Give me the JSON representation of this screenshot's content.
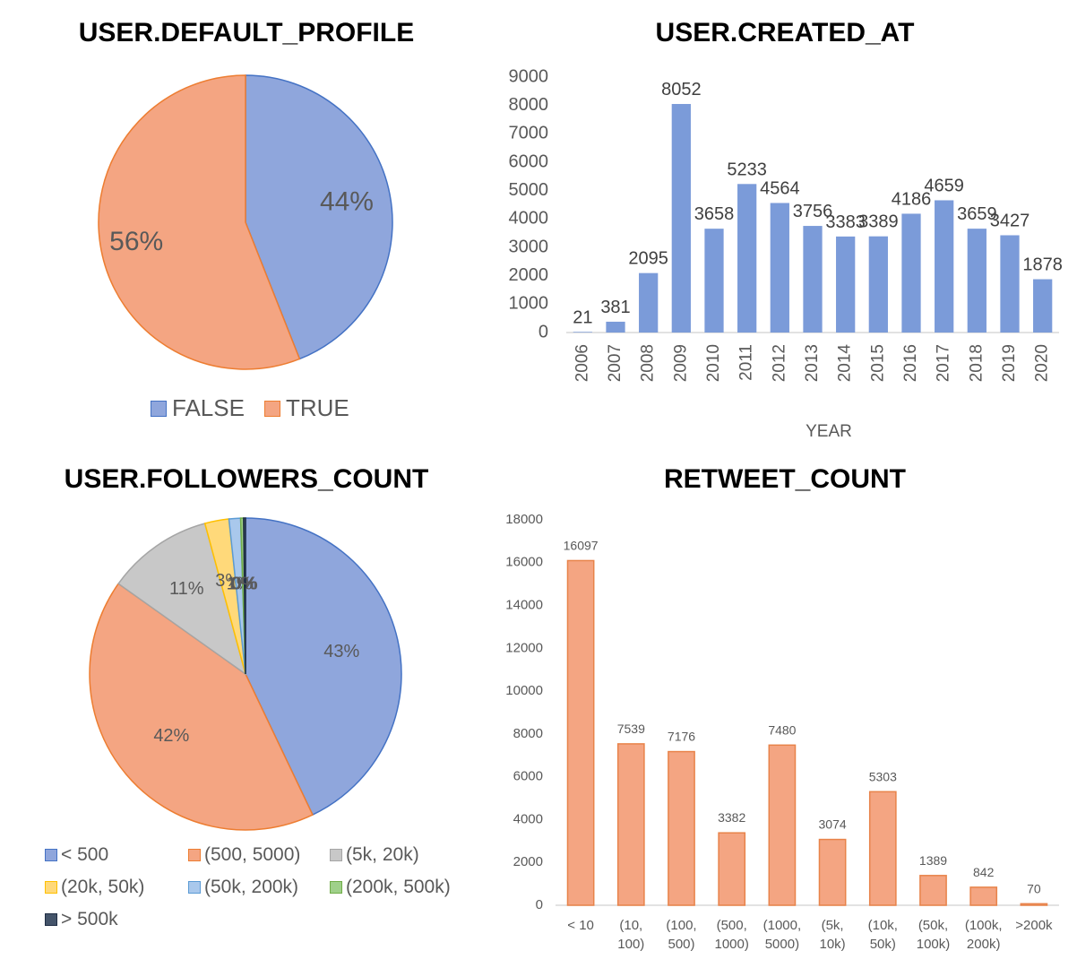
{
  "chart_data": [
    {
      "id": "default_profile",
      "type": "pie",
      "title": "USER.DEFAULT_PROFILE",
      "labels": [
        "FALSE",
        "TRUE"
      ],
      "values": [
        44,
        56
      ],
      "data_labels": [
        "44%",
        "56%"
      ],
      "colors": [
        "#8fa6dc",
        "#f4a582"
      ],
      "legend": "bottom"
    },
    {
      "id": "created_at",
      "type": "bar",
      "title": "USER.CREATED_AT",
      "xlabel": "YEAR",
      "ylabel": "",
      "categories": [
        "2006",
        "2007",
        "2008",
        "2009",
        "2010",
        "2011",
        "2012",
        "2013",
        "2014",
        "2015",
        "2016",
        "2017",
        "2018",
        "2019",
        "2020"
      ],
      "values": [
        21,
        381,
        2095,
        8052,
        3658,
        5233,
        4564,
        3756,
        3383,
        3389,
        4186,
        4659,
        3659,
        3427,
        1878
      ],
      "ylim": [
        0,
        9000
      ],
      "yticks": [
        0,
        1000,
        2000,
        3000,
        4000,
        5000,
        6000,
        7000,
        8000,
        9000
      ],
      "color": "#7b9bd9",
      "grid": false
    },
    {
      "id": "followers_count",
      "type": "pie",
      "title": "USER.FOLLOWERS_COUNT",
      "labels": [
        "< 500",
        "(500, 5000)",
        "(5k, 20k)",
        "(20k, 50k)",
        "(50k, 200k)",
        "(200k, 500k)",
        "> 500k"
      ],
      "values": [
        43,
        42,
        11,
        2.5,
        1.2,
        0.3,
        0.2
      ],
      "data_labels": [
        "43%",
        "42%",
        "11%",
        "3%",
        "1%",
        "0%",
        "0%"
      ],
      "colors": [
        "#8fa6dc",
        "#f4a582",
        "#c8c8c8",
        "#ffd97a",
        "#a9c8ec",
        "#9fd08a",
        "#44546a"
      ],
      "legend": "bottom"
    },
    {
      "id": "retweet_count",
      "type": "bar",
      "title": "RETWEET_COUNT",
      "xlabel": "",
      "ylabel": "",
      "categories": [
        [
          "< 10"
        ],
        [
          "(10,",
          "100)"
        ],
        [
          "(100,",
          "500)"
        ],
        [
          "(500,",
          "1000)"
        ],
        [
          "(1000,",
          "5000)"
        ],
        [
          "(5k,",
          "10k)"
        ],
        [
          "(10k,",
          "50k)"
        ],
        [
          "(50k,",
          "100k)"
        ],
        [
          "(100k,",
          "200k)"
        ],
        [
          ">200k"
        ]
      ],
      "values": [
        16097,
        7539,
        7176,
        3382,
        7480,
        3074,
        5303,
        1389,
        842,
        70
      ],
      "ylim": [
        0,
        18000
      ],
      "yticks": [
        0,
        2000,
        4000,
        6000,
        8000,
        10000,
        12000,
        14000,
        16000,
        18000
      ],
      "color": "#f4a582",
      "edge_color": "#e8834a",
      "grid": false
    }
  ]
}
